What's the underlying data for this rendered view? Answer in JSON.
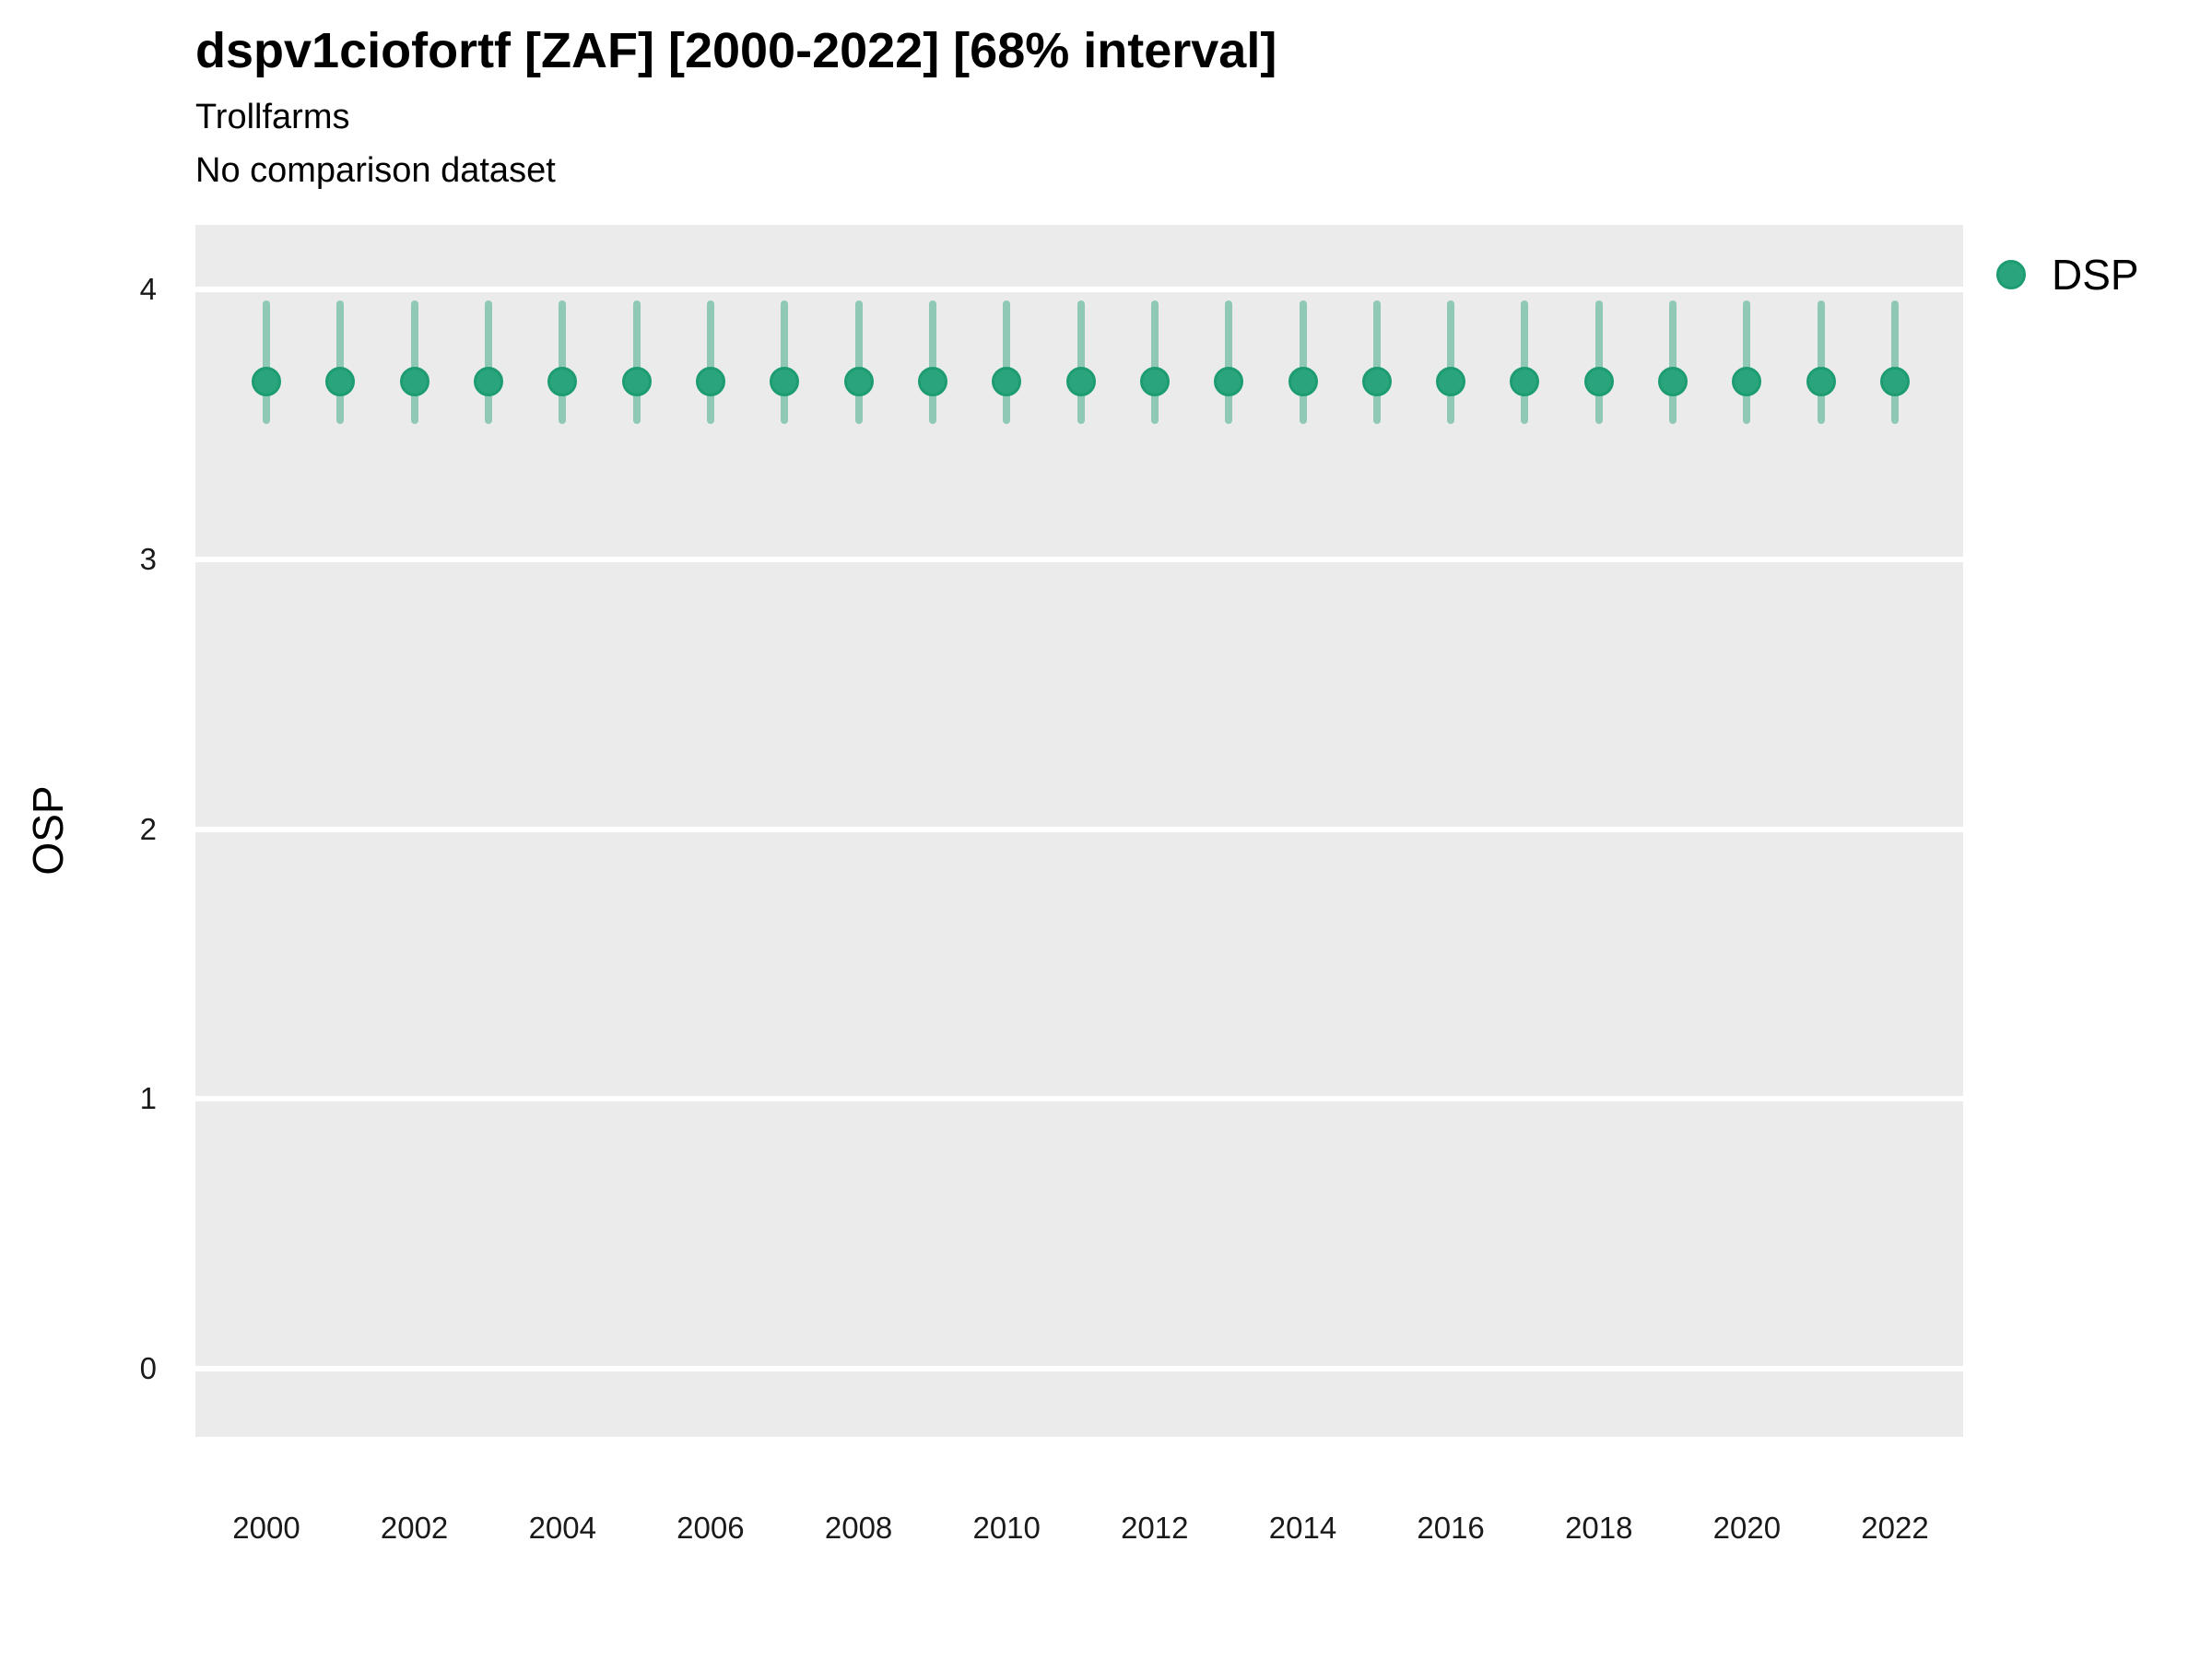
{
  "header": {
    "title": "dspv1ciofortf [ZAF] [2000-2022] [68% interval]",
    "subtitle1": "Trollfarms",
    "subtitle2": "No comparison dataset"
  },
  "legend": {
    "items": [
      {
        "label": "DSP",
        "color": "#2aa47c"
      }
    ],
    "position": "right-top"
  },
  "axes": {
    "y_title": "OSP",
    "x_title": "",
    "y_tick_labels": [
      "0",
      "1",
      "2",
      "3",
      "4"
    ],
    "x_tick_labels": [
      "2000",
      "2002",
      "2004",
      "2006",
      "2008",
      "2010",
      "2012",
      "2014",
      "2016",
      "2018",
      "2020",
      "2022"
    ]
  },
  "chart_data": {
    "type": "scatter",
    "subtype": "pointrange",
    "title": "dspv1ciofortf [ZAF] [2000-2022] [68% interval]",
    "subtitle": "Trollfarms",
    "note": "No comparison dataset",
    "interval_label": "68% interval",
    "xlabel": "",
    "ylabel": "OSP",
    "x": [
      2000,
      2001,
      2002,
      2003,
      2004,
      2005,
      2006,
      2007,
      2008,
      2009,
      2010,
      2011,
      2012,
      2013,
      2014,
      2015,
      2016,
      2017,
      2018,
      2019,
      2020,
      2021,
      2022
    ],
    "series": [
      {
        "name": "DSP",
        "values": [
          3.66,
          3.66,
          3.66,
          3.66,
          3.66,
          3.66,
          3.66,
          3.66,
          3.66,
          3.66,
          3.66,
          3.66,
          3.66,
          3.66,
          3.66,
          3.66,
          3.66,
          3.66,
          3.66,
          3.66,
          3.66,
          3.66,
          3.66
        ],
        "low": [
          3.5,
          3.5,
          3.5,
          3.5,
          3.5,
          3.5,
          3.5,
          3.5,
          3.5,
          3.5,
          3.5,
          3.5,
          3.5,
          3.5,
          3.5,
          3.5,
          3.5,
          3.5,
          3.5,
          3.5,
          3.5,
          3.5,
          3.5
        ],
        "high": [
          3.96,
          3.96,
          3.96,
          3.96,
          3.96,
          3.96,
          3.96,
          3.96,
          3.96,
          3.96,
          3.96,
          3.96,
          3.96,
          3.96,
          3.96,
          3.96,
          3.96,
          3.96,
          3.96,
          3.96,
          3.96,
          3.96,
          3.96
        ]
      }
    ],
    "ylim": [
      -0.25,
      4.25
    ],
    "yticks": [
      0,
      1,
      2,
      3,
      4
    ],
    "xticks": [
      2000,
      2002,
      2004,
      2006,
      2008,
      2010,
      2012,
      2014,
      2016,
      2018,
      2020,
      2022
    ],
    "grid": "major-horizontal-white-on-grey",
    "legend_position": "right-top",
    "colors": {
      "point_fill": "#2aa47c",
      "point_stroke": "#1d9c72",
      "interval": "rgba(42,163,123,0.48)",
      "panel_background": "#ebebeb",
      "gridline": "#ffffff",
      "text": "#000000"
    }
  }
}
